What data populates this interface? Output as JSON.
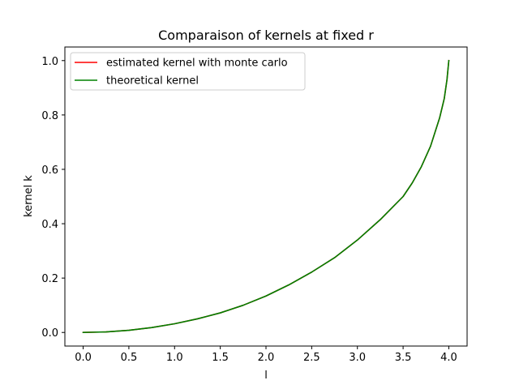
{
  "chart_data": {
    "type": "line",
    "title": "Comparaison of kernels at fixed r",
    "xlabel": "l",
    "ylabel": "kernel k",
    "xlim": [
      -0.2,
      4.2
    ],
    "ylim": [
      -0.05,
      1.05
    ],
    "xticks": [
      0.0,
      0.5,
      1.0,
      1.5,
      2.0,
      2.5,
      3.0,
      3.5,
      4.0
    ],
    "xtick_labels": [
      "0.0",
      "0.5",
      "1.0",
      "1.5",
      "2.0",
      "2.5",
      "3.0",
      "3.5",
      "4.0"
    ],
    "yticks": [
      0.0,
      0.2,
      0.4,
      0.6,
      0.8,
      1.0
    ],
    "ytick_labels": [
      "0.0",
      "0.2",
      "0.4",
      "0.6",
      "0.8",
      "1.0"
    ],
    "grid": false,
    "legend_position": "top-left",
    "series": [
      {
        "name": "estimated kernel with monte carlo",
        "color": "#ff0000",
        "x": [
          0.0,
          0.25,
          0.5,
          0.75,
          1.0,
          1.25,
          1.5,
          1.75,
          2.0,
          2.25,
          2.5,
          2.75,
          3.0,
          3.25,
          3.5,
          3.6,
          3.7,
          3.8,
          3.9,
          3.95,
          3.98,
          4.0
        ],
        "y": [
          0.0,
          0.002,
          0.008,
          0.018,
          0.032,
          0.05,
          0.072,
          0.1,
          0.134,
          0.175,
          0.222,
          0.275,
          0.34,
          0.415,
          0.5,
          0.55,
          0.61,
          0.685,
          0.79,
          0.86,
          0.93,
          1.0
        ]
      },
      {
        "name": "theoretical kernel",
        "color": "#008000",
        "x": [
          0.0,
          0.25,
          0.5,
          0.75,
          1.0,
          1.25,
          1.5,
          1.75,
          2.0,
          2.25,
          2.5,
          2.75,
          3.0,
          3.25,
          3.5,
          3.6,
          3.7,
          3.8,
          3.9,
          3.95,
          3.98,
          4.0
        ],
        "y": [
          0.0,
          0.002,
          0.008,
          0.018,
          0.032,
          0.05,
          0.072,
          0.1,
          0.134,
          0.175,
          0.222,
          0.275,
          0.34,
          0.415,
          0.5,
          0.55,
          0.61,
          0.685,
          0.79,
          0.86,
          0.93,
          1.0
        ]
      }
    ]
  }
}
